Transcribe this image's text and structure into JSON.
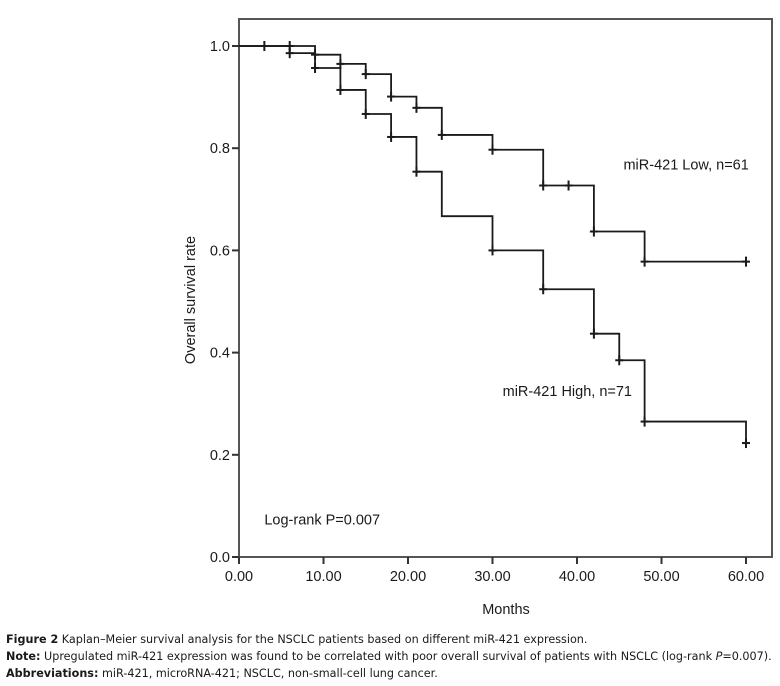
{
  "chart_data": {
    "type": "line",
    "subtype": "kaplan-meier-step",
    "xlabel": "Months",
    "ylabel": "Overall survival rate",
    "xlim": [
      0,
      60
    ],
    "ylim": [
      0,
      1.0
    ],
    "x_ticks": [
      0,
      10,
      20,
      30,
      40,
      50,
      60
    ],
    "x_tick_labels": [
      "0.00",
      "10.00",
      "20.00",
      "30.00",
      "40.00",
      "50.00",
      "60.00"
    ],
    "y_ticks": [
      0,
      0.2,
      0.4,
      0.6,
      0.8,
      1.0
    ],
    "y_tick_labels": [
      "0.0",
      "0.2",
      "0.4",
      "0.6",
      "0.8",
      "1.0"
    ],
    "grid": false,
    "series": [
      {
        "name": "miR-421 Low, n=61",
        "steps": [
          {
            "t": 0,
            "s": 1.0
          },
          {
            "t": 9,
            "s": 0.983
          },
          {
            "t": 12,
            "s": 0.965
          },
          {
            "t": 15,
            "s": 0.945
          },
          {
            "t": 18,
            "s": 0.901
          },
          {
            "t": 21,
            "s": 0.879
          },
          {
            "t": 24,
            "s": 0.826
          },
          {
            "t": 30,
            "s": 0.797
          },
          {
            "t": 36,
            "s": 0.727
          },
          {
            "t": 42,
            "s": 0.637
          },
          {
            "t": 48,
            "s": 0.578
          }
        ],
        "end_t": 60,
        "censored": [
          3,
          6,
          9,
          12,
          15,
          18,
          21,
          24,
          30,
          36,
          39,
          42,
          48,
          60
        ]
      },
      {
        "name": "miR-421 High, n=71",
        "steps": [
          {
            "t": 0,
            "s": 1.0
          },
          {
            "t": 6,
            "s": 0.986
          },
          {
            "t": 9,
            "s": 0.957
          },
          {
            "t": 12,
            "s": 0.914
          },
          {
            "t": 15,
            "s": 0.867
          },
          {
            "t": 18,
            "s": 0.822
          },
          {
            "t": 21,
            "s": 0.754
          },
          {
            "t": 24,
            "s": 0.667
          },
          {
            "t": 30,
            "s": 0.6
          },
          {
            "t": 36,
            "s": 0.524
          },
          {
            "t": 42,
            "s": 0.437
          },
          {
            "t": 45,
            "s": 0.385
          },
          {
            "t": 48,
            "s": 0.265
          },
          {
            "t": 60,
            "s": 0.223
          }
        ],
        "end_t": 60,
        "censored": [
          6,
          9,
          12,
          15,
          18,
          21,
          30,
          36,
          42,
          45,
          48,
          60
        ]
      }
    ],
    "annotations": [
      {
        "text": "miR-421 Low, n=61",
        "x": 45.5,
        "y": 0.758
      },
      {
        "text": "miR-421 High, n=71",
        "x": 31.2,
        "y": 0.315
      },
      {
        "text": "Log-rank P=0.007",
        "x": 3.0,
        "y": 0.064
      }
    ],
    "line_color": "#1a1a1a"
  },
  "caption": {
    "figure_label": "Figure 2",
    "figure_text": " Kaplan–Meier survival analysis for the NSCLC patients based on different miR-421 expression.",
    "note_label": "Note:",
    "note_text_1": " Upregulated miR-421 expression was found to be correlated with poor overall survival of patients with NSCLC (log-rank ",
    "note_italic": "P",
    "note_text_2": "=0.007).",
    "abbrev_label": "Abbreviations:",
    "abbrev_text": " miR-421, microRNA-421; NSCLC, non-small-cell lung cancer."
  }
}
